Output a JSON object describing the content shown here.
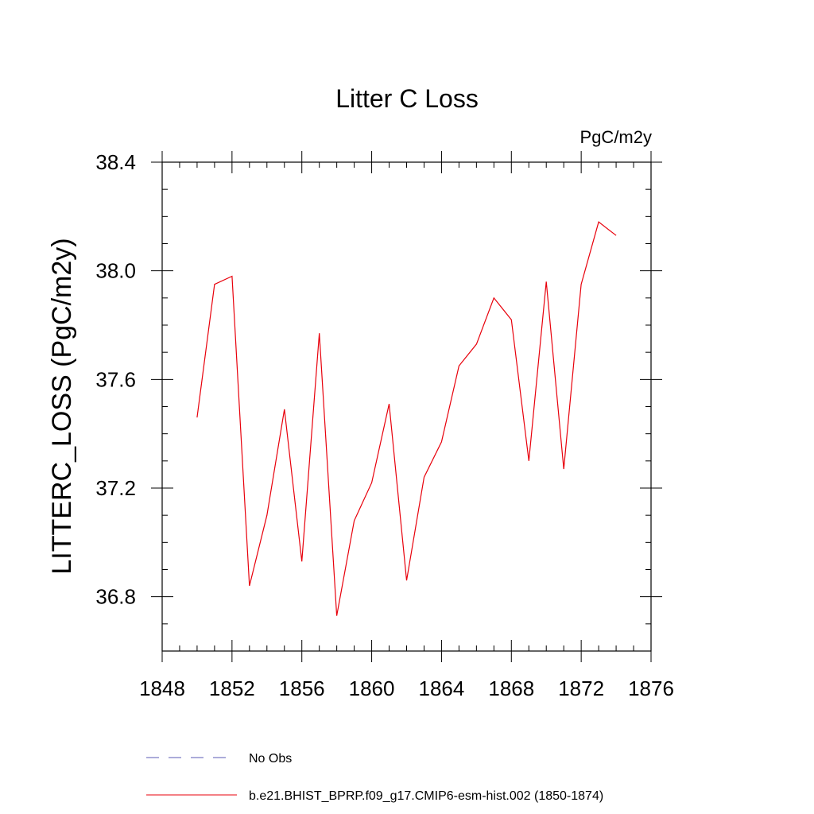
{
  "chart_data": {
    "type": "line",
    "title": "Litter C Loss",
    "units_label": "PgC/m2y",
    "xlabel": "",
    "ylabel": "LITTERC_LOSS  (PgC/m2y)",
    "xlim": [
      1848,
      1876
    ],
    "ylim": [
      36.6,
      38.4
    ],
    "x_ticks": [
      1848,
      1852,
      1856,
      1860,
      1864,
      1868,
      1872,
      1876
    ],
    "x_tick_labels": [
      "1848",
      "1852",
      "1856",
      "1860",
      "1864",
      "1868",
      "1872",
      "1876"
    ],
    "y_ticks": [
      36.8,
      37.2,
      37.6,
      38.0,
      38.4
    ],
    "y_tick_labels": [
      "36.8",
      "37.2",
      "37.6",
      "38.0",
      "38.4"
    ],
    "x_minor_step": 1,
    "y_minor_step": 0.1,
    "grid": false,
    "legend_position": "bottom",
    "series": [
      {
        "name": "b.e21.BHIST_BPRP.f09_g17.CMIP6-esm-hist.002 (1850-1874)",
        "color": "#e8000b",
        "style": "solid",
        "x": [
          1850,
          1851,
          1852,
          1853,
          1854,
          1855,
          1856,
          1857,
          1858,
          1859,
          1860,
          1861,
          1862,
          1863,
          1864,
          1865,
          1866,
          1867,
          1868,
          1869,
          1870,
          1871,
          1872,
          1873,
          1874
        ],
        "values": [
          37.46,
          37.95,
          37.98,
          36.84,
          37.1,
          37.49,
          36.93,
          37.77,
          36.73,
          37.08,
          37.22,
          37.51,
          36.86,
          37.24,
          37.37,
          37.65,
          37.73,
          37.9,
          37.82,
          37.3,
          37.96,
          37.27,
          37.95,
          38.18,
          38.13
        ]
      }
    ],
    "legend": [
      {
        "label": "No Obs",
        "color": "#5a5ab4",
        "style": "dashed"
      },
      {
        "label": "b.e21.BHIST_BPRP.f09_g17.CMIP6-esm-hist.002 (1850-1874)",
        "color": "#e8000b",
        "style": "solid"
      }
    ]
  }
}
